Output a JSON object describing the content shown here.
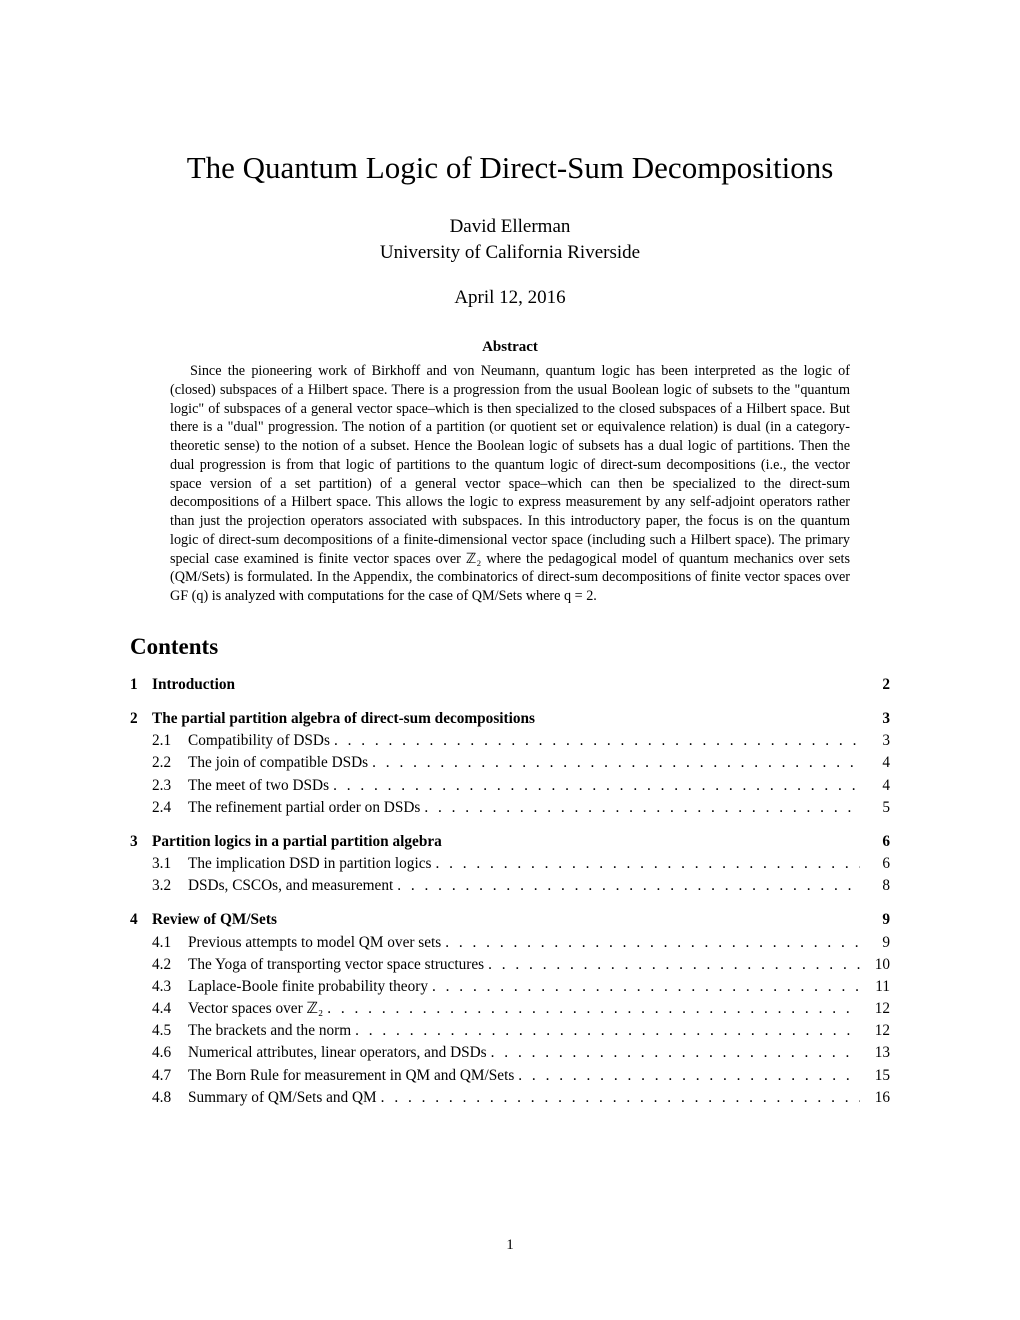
{
  "title": "The Quantum Logic of Direct-Sum Decompositions",
  "author": "David Ellerman",
  "affiliation": "University of California Riverside",
  "date": "April 12, 2016",
  "abstract_heading": "Abstract",
  "abstract_paragraph": "Since the pioneering work of Birkhoff and von Neumann, quantum logic has been interpreted as the logic of (closed) subspaces of a Hilbert space. There is a progression from the usual Boolean logic of subsets to the \"quantum logic\" of subspaces of a general vector space–which is then specialized to the closed subspaces of a Hilbert space. But there is a \"dual\" progression. The notion of a partition (or quotient set or equivalence relation) is dual (in a category-theoretic sense) to the notion of a subset. Hence the Boolean logic of subsets has a dual logic of partitions. Then the dual progression is from that logic of partitions to the quantum logic of direct-sum decompositions (i.e., the vector space version of a set partition) of a general vector space–which can then be specialized to the direct-sum decompositions of a Hilbert space. This allows the logic to express measurement by any self-adjoint operators rather than just the projection operators associated with subspaces. In this introductory paper, the focus is on the quantum logic of direct-sum decompositions of a finite-dimensional vector space (including such a Hilbert space). The primary special case examined is finite vector spaces over ℤ₂ where the pedagogical model of quantum mechanics over sets (QM/Sets) is formulated. In the Appendix, the combinatorics of direct-sum decompositions of finite vector spaces over GF (q) is analyzed with computations for the case of QM/Sets where q = 2.",
  "contents_heading": "Contents",
  "toc": [
    {
      "num": "1",
      "title": "Introduction",
      "page": "2",
      "subs": []
    },
    {
      "num": "2",
      "title": "The partial partition algebra of direct-sum decompositions",
      "page": "3",
      "subs": [
        {
          "num": "2.1",
          "title": "Compatibility of DSDs",
          "page": "3"
        },
        {
          "num": "2.2",
          "title": "The join of compatible DSDs",
          "page": "4"
        },
        {
          "num": "2.3",
          "title": "The meet of two DSDs",
          "page": "4"
        },
        {
          "num": "2.4",
          "title": "The refinement partial order on DSDs",
          "page": "5"
        }
      ]
    },
    {
      "num": "3",
      "title": "Partition logics in a partial partition algebra",
      "page": "6",
      "subs": [
        {
          "num": "3.1",
          "title": "The implication DSD in partition logics",
          "page": "6"
        },
        {
          "num": "3.2",
          "title": "DSDs, CSCOs, and measurement",
          "page": "8"
        }
      ]
    },
    {
      "num": "4",
      "title": "Review of QM/Sets",
      "page": "9",
      "subs": [
        {
          "num": "4.1",
          "title": "Previous attempts to model QM over sets",
          "page": "9"
        },
        {
          "num": "4.2",
          "title": "The Yoga of transporting vector space structures",
          "page": "10"
        },
        {
          "num": "4.3",
          "title": "Laplace-Boole finite probability theory",
          "page": "11"
        },
        {
          "num": "4.4",
          "title": "Vector spaces over ℤ₂",
          "page": "12"
        },
        {
          "num": "4.5",
          "title": "The brackets and the norm",
          "page": "12"
        },
        {
          "num": "4.6",
          "title": "Numerical attributes, linear operators, and DSDs",
          "page": "13"
        },
        {
          "num": "4.7",
          "title": "The Born Rule for measurement in QM and QM/Sets",
          "page": "15"
        },
        {
          "num": "4.8",
          "title": "Summary of QM/Sets and QM",
          "page": "16"
        }
      ]
    }
  ],
  "page_number": "1"
}
